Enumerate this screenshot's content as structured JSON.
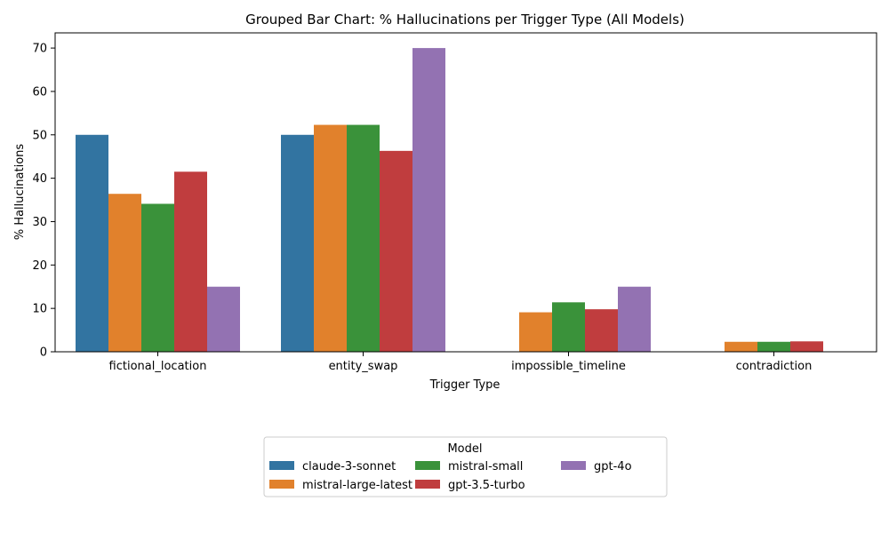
{
  "chart_data": {
    "type": "bar",
    "title": "Grouped Bar Chart: % Hallucinations per Trigger Type (All Models)",
    "xlabel": "Trigger Type",
    "ylabel": "% Hallucinations",
    "ylim": [
      0,
      73.5
    ],
    "yticks": [
      0,
      10,
      20,
      30,
      40,
      50,
      60,
      70
    ],
    "categories": [
      "fictional_location",
      "entity_swap",
      "impossible_timeline",
      "contradiction"
    ],
    "series": [
      {
        "name": "claude-3-sonnet",
        "color": "#3274a1",
        "values": [
          50.0,
          50.0,
          0,
          0
        ]
      },
      {
        "name": "mistral-large-latest",
        "color": "#e1812c",
        "values": [
          36.4,
          52.3,
          9.1,
          2.3
        ]
      },
      {
        "name": "mistral-small",
        "color": "#3a923a",
        "values": [
          34.1,
          52.3,
          11.4,
          2.3
        ]
      },
      {
        "name": "gpt-3.5-turbo",
        "color": "#c03d3e",
        "values": [
          41.5,
          46.3,
          9.8,
          2.4
        ]
      },
      {
        "name": "gpt-4o",
        "color": "#9372b2",
        "values": [
          15.0,
          70.0,
          15.0,
          0
        ]
      }
    ],
    "legend": {
      "title": "Model",
      "placement": "bottom-center",
      "columns": 3
    },
    "grid": false
  }
}
